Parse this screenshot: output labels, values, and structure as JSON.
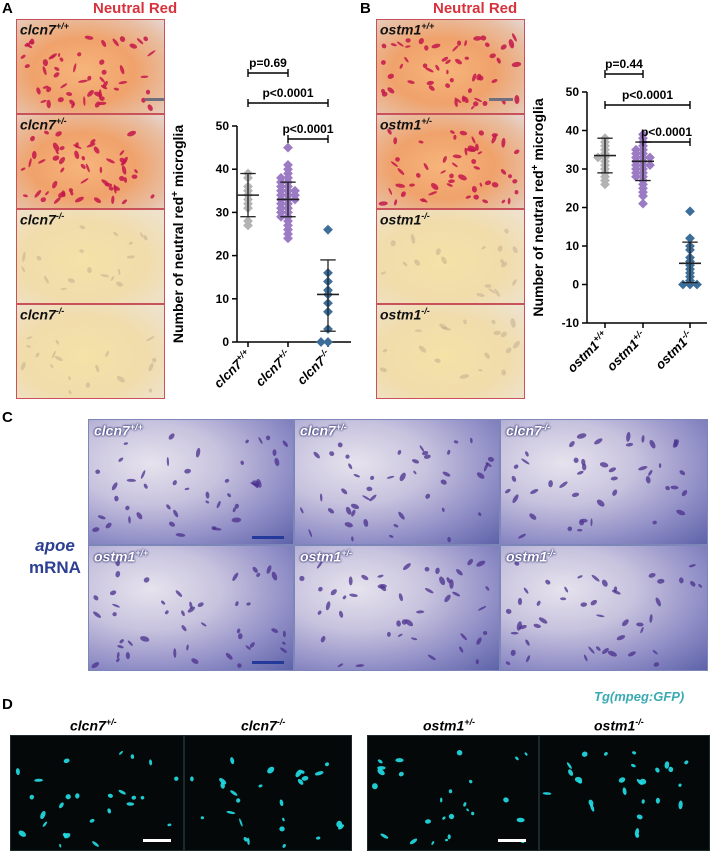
{
  "panels": {
    "a_letter": "A",
    "b_letter": "B",
    "c_letter": "C",
    "d_letter": "D"
  },
  "neutral_red_title": "Neutral Red",
  "panel_a_tiles": [
    {
      "gene": "clcn7",
      "genotype": "+/+"
    },
    {
      "gene": "clcn7",
      "genotype": "+/-"
    },
    {
      "gene": "clcn7",
      "genotype": "-/-"
    },
    {
      "gene": "clcn7",
      "genotype": "-/-"
    }
  ],
  "panel_b_tiles": [
    {
      "gene": "ostm1",
      "genotype": "+/+"
    },
    {
      "gene": "ostm1",
      "genotype": "+/-"
    },
    {
      "gene": "ostm1",
      "genotype": "-/-"
    },
    {
      "gene": "ostm1",
      "genotype": "-/-"
    }
  ],
  "panel_c": {
    "side_label_line1": "apoe",
    "side_label_line2": "mRNA",
    "tiles": [
      {
        "gene": "clcn7",
        "genotype": "+/+"
      },
      {
        "gene": "clcn7",
        "genotype": "+/-"
      },
      {
        "gene": "clcn7",
        "genotype": "-/-"
      },
      {
        "gene": "ostm1",
        "genotype": "+/+"
      },
      {
        "gene": "ostm1",
        "genotype": "+/-"
      },
      {
        "gene": "ostm1",
        "genotype": "-/-"
      }
    ]
  },
  "panel_d": {
    "reporter": "Tg(mpeg:GFP)",
    "tiles": [
      {
        "gene": "clcn7",
        "genotype": "+/-"
      },
      {
        "gene": "clcn7",
        "genotype": "-/-"
      },
      {
        "gene": "ostm1",
        "genotype": "+/-"
      },
      {
        "gene": "ostm1",
        "genotype": "-/-"
      }
    ]
  },
  "colors": {
    "wt": "#b3b3b3",
    "het": "#9b7bc4",
    "mut": "#3c6e99",
    "neutral_red": "#d8323c",
    "apoe": "#2c3f92",
    "gfp": "#3aaab3"
  },
  "chart_data": [
    {
      "type": "scatter",
      "title": "",
      "ylabel": "Number of neutral red+ microglia",
      "ylim": [
        0,
        50
      ],
      "yticks": [
        "0",
        "10",
        "20",
        "30",
        "40",
        "50"
      ],
      "categories": [
        {
          "gene": "clcn7",
          "genotype": "+/+"
        },
        {
          "gene": "clcn7",
          "genotype": "+/-"
        },
        {
          "gene": "clcn7",
          "genotype": "-/-"
        }
      ],
      "series": [
        {
          "values": [
            39,
            38,
            36,
            35,
            34,
            33,
            32,
            31,
            28,
            27
          ],
          "mean": 34,
          "sd_low": 29,
          "sd_high": 39
        },
        {
          "values": [
            45,
            41,
            40,
            39,
            38,
            38,
            37,
            37,
            36,
            36,
            35,
            35,
            35,
            34,
            34,
            34,
            33,
            33,
            33,
            32,
            32,
            31,
            31,
            30,
            30,
            29,
            29,
            28,
            27,
            26,
            25,
            24
          ],
          "mean": 33,
          "sd_low": 29,
          "sd_high": 37
        },
        {
          "values": [
            26,
            16,
            14,
            12,
            11,
            9,
            7,
            3,
            0,
            0
          ],
          "mean": 11,
          "sd_low": 2.5,
          "sd_high": 19
        }
      ],
      "comparisons": [
        {
          "label": "p=0.69",
          "from": 0,
          "to": 1
        },
        {
          "label": "p<0.0001",
          "from": 0,
          "to": 2
        },
        {
          "label": "p<0.0001",
          "from": 1,
          "to": 2
        }
      ]
    },
    {
      "type": "scatter",
      "title": "",
      "ylabel": "Number of neutral red+ microglia",
      "ylim": [
        -10,
        50
      ],
      "yticks": [
        "-10",
        "0",
        "10",
        "20",
        "30",
        "40",
        "50"
      ],
      "categories": [
        {
          "gene": "ostm1",
          "genotype": "+/+"
        },
        {
          "gene": "ostm1",
          "genotype": "+/-"
        },
        {
          "gene": "ostm1",
          "genotype": "-/-"
        }
      ],
      "series": [
        {
          "values": [
            38,
            37,
            36,
            35,
            34,
            33,
            33,
            32,
            31,
            30,
            29,
            28,
            27,
            26
          ],
          "mean": 33.5,
          "sd_low": 29,
          "sd_high": 38
        },
        {
          "values": [
            39,
            38,
            37,
            36,
            35,
            35,
            34,
            34,
            33,
            33,
            33,
            32,
            32,
            31,
            31,
            31,
            30,
            30,
            29,
            29,
            28,
            28,
            27,
            26,
            25,
            24,
            23,
            21
          ],
          "mean": 32,
          "sd_low": 27,
          "sd_high": 37
        },
        {
          "values": [
            19,
            12,
            10,
            9,
            7,
            6,
            5,
            4,
            3,
            2,
            1,
            0,
            0,
            0
          ],
          "mean": 5.5,
          "sd_low": 0.5,
          "sd_high": 11
        }
      ],
      "comparisons": [
        {
          "label": "p=0.44",
          "from": 0,
          "to": 1
        },
        {
          "label": "p<0.0001",
          "from": 0,
          "to": 2
        },
        {
          "label": "p<0.0001",
          "from": 1,
          "to": 2
        }
      ]
    }
  ]
}
